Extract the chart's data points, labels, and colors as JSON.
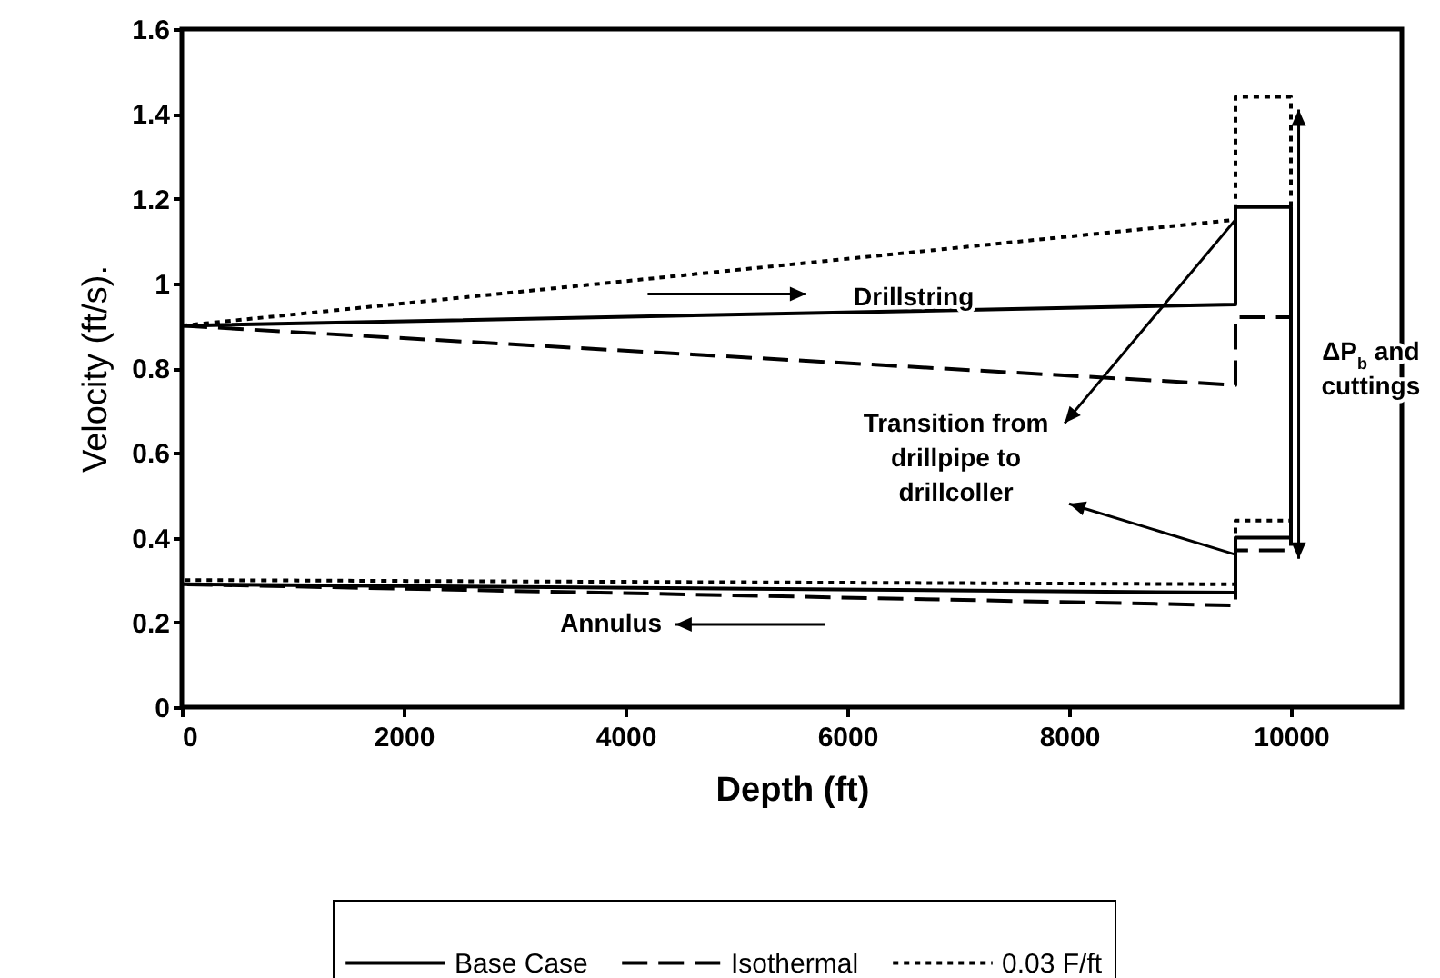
{
  "chart_data": {
    "type": "line",
    "xlabel": "Depth (ft)",
    "ylabel": "Velocity (ft/s).",
    "x": [
      0,
      9500,
      9500,
      10000,
      10000,
      9500,
      9500,
      0
    ],
    "series": [
      {
        "name": "Base Case",
        "color": "#000000",
        "line_style": "solid",
        "values": [
          0.9,
          0.95,
          1.18,
          1.18,
          0.4,
          0.4,
          0.27,
          0.29
        ]
      },
      {
        "name": "Isothermal",
        "color": "#000000",
        "line_style": "dashed",
        "values": [
          0.9,
          0.76,
          0.92,
          0.92,
          0.37,
          0.37,
          0.24,
          0.29
        ]
      },
      {
        "name": "0.03 F/ft",
        "color": "#000000",
        "line_style": "dotted",
        "values": [
          0.9,
          1.15,
          1.44,
          1.44,
          0.44,
          0.44,
          0.29,
          0.3
        ]
      }
    ],
    "xlim": [
      0,
      11000
    ],
    "xticks": [
      0,
      2000,
      4000,
      6000,
      8000,
      10000
    ],
    "ylim": [
      0,
      1.6
    ],
    "yticks": [
      0,
      0.2,
      0.4,
      0.6,
      0.8,
      1,
      1.2,
      1.4,
      1.6
    ],
    "grid": false,
    "legend": "bottom",
    "marker": "none",
    "annotations": [
      "Drillstring",
      "Annulus",
      {
        "text": "Transition from drillpipe to drillcoller",
        "x": 9500,
        "y": 1.15
      },
      "ΔP$_{b}$ and cuttings"
    ]
  }
}
